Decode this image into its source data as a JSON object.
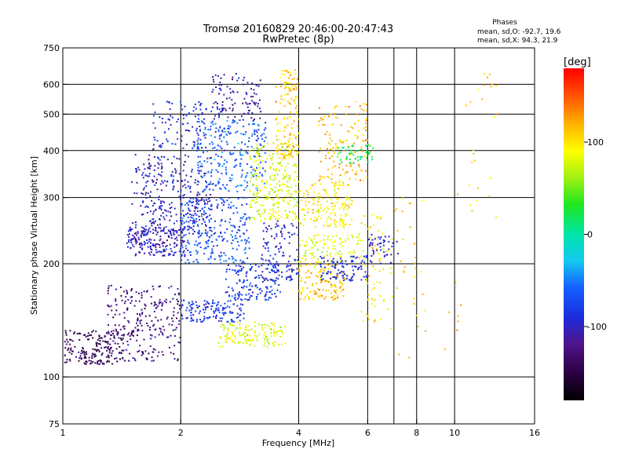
{
  "chart_data": {
    "type": "scatter",
    "title": "Tromsø 20160829 20:46:00-20:47:43",
    "subtitle": "RwPretec (8p)",
    "xlabel": "Frequency [MHz]",
    "ylabel": "Stationary phase Virtual Height [km]",
    "x_scale": "log",
    "y_scale": "log",
    "xlim": [
      1,
      16
    ],
    "ylim": [
      75,
      750
    ],
    "x_ticks": [
      1,
      2,
      4,
      6,
      8,
      10,
      16
    ],
    "x_tick_labels": [
      "1",
      "2",
      "4",
      "6",
      "8",
      "10",
      "16"
    ],
    "x_grid": [
      2,
      4,
      6,
      7,
      8,
      10
    ],
    "y_ticks": [
      75,
      100,
      200,
      300,
      400,
      500,
      600,
      750
    ],
    "y_tick_labels": [
      "75",
      "100",
      "200",
      "300",
      "400",
      "500",
      "600",
      "750"
    ],
    "y_grid": [
      100,
      200,
      300,
      400,
      500,
      600
    ],
    "grid": true,
    "stats": {
      "heading": "Phases",
      "line_o": "mean, sd,O: -92.7, 19.6",
      "line_x": "mean, sd,X:  94.3, 21.9"
    },
    "colorbar": {
      "unit": "[deg]",
      "range": [
        -180,
        180
      ],
      "ticks": [
        100,
        0,
        -100
      ],
      "tick_labels": [
        "100",
        "0",
        "-100"
      ]
    },
    "point_color": "phase in degrees (colorbar)",
    "clusters": [
      {
        "f": [
          1.0,
          1.42
        ],
        "h": [
          108,
          133
        ],
        "phase": -140,
        "n": 180
      },
      {
        "f": [
          1.3,
          2.0
        ],
        "h": [
          110,
          175
        ],
        "phase": -125,
        "n": 260
      },
      {
        "f": [
          1.45,
          2.05
        ],
        "h": [
          210,
          250
        ],
        "phase": -105,
        "n": 200
      },
      {
        "f": [
          1.5,
          2.4
        ],
        "h": [
          240,
          390
        ],
        "phase": -100,
        "n": 320
      },
      {
        "f": [
          1.7,
          2.6
        ],
        "h": [
          400,
          540
        ],
        "phase": -90,
        "n": 120
      },
      {
        "f": [
          2.0,
          2.9
        ],
        "h": [
          140,
          160
        ],
        "phase": -85,
        "n": 140
      },
      {
        "f": [
          2.0,
          3.0
        ],
        "h": [
          200,
          300
        ],
        "phase": -70,
        "n": 260
      },
      {
        "f": [
          2.2,
          3.3
        ],
        "h": [
          310,
          480
        ],
        "phase": -60,
        "n": 240
      },
      {
        "f": [
          2.4,
          3.2
        ],
        "h": [
          480,
          640
        ],
        "phase": -105,
        "n": 100
      },
      {
        "f": [
          2.6,
          3.6
        ],
        "h": [
          160,
          200
        ],
        "phase": -80,
        "n": 150
      },
      {
        "f": [
          2.5,
          3.7
        ],
        "h": [
          120,
          140
        ],
        "phase": 80,
        "n": 140
      },
      {
        "f": [
          3.0,
          4.0
        ],
        "h": [
          260,
          420
        ],
        "phase": 80,
        "n": 260
      },
      {
        "f": [
          3.5,
          4.0
        ],
        "h": [
          380,
          660
        ],
        "phase": 110,
        "n": 140
      },
      {
        "f": [
          3.2,
          4.0
        ],
        "h": [
          180,
          260
        ],
        "phase": -95,
        "n": 120
      },
      {
        "f": [
          4.0,
          5.5
        ],
        "h": [
          250,
          330
        ],
        "phase": 95,
        "n": 160
      },
      {
        "f": [
          4.0,
          5.3
        ],
        "h": [
          160,
          200
        ],
        "phase": 115,
        "n": 130
      },
      {
        "f": [
          4.0,
          5.8
        ],
        "h": [
          200,
          240
        ],
        "phase": 80,
        "n": 110
      },
      {
        "f": [
          4.5,
          6.0
        ],
        "h": [
          330,
          540
        ],
        "phase": 115,
        "n": 130
      },
      {
        "f": [
          4.5,
          6.0
        ],
        "h": [
          180,
          210
        ],
        "phase": -90,
        "n": 100
      },
      {
        "f": [
          5.0,
          6.2
        ],
        "h": [
          370,
          420
        ],
        "phase": 20,
        "n": 50
      },
      {
        "f": [
          5.7,
          6.6
        ],
        "h": [
          140,
          270
        ],
        "phase": 100,
        "n": 60
      },
      {
        "f": [
          6.0,
          7.2
        ],
        "h": [
          200,
          240
        ],
        "phase": -100,
        "n": 45
      },
      {
        "f": [
          6.3,
          8.5
        ],
        "h": [
          130,
          300
        ],
        "phase": 100,
        "n": 30
      },
      {
        "f": [
          7.0,
          10.5
        ],
        "h": [
          110,
          320
        ],
        "phase": 120,
        "n": 20
      },
      {
        "f": [
          10.5,
          12.8
        ],
        "h": [
          260,
          640
        ],
        "phase": 110,
        "n": 25
      }
    ]
  }
}
